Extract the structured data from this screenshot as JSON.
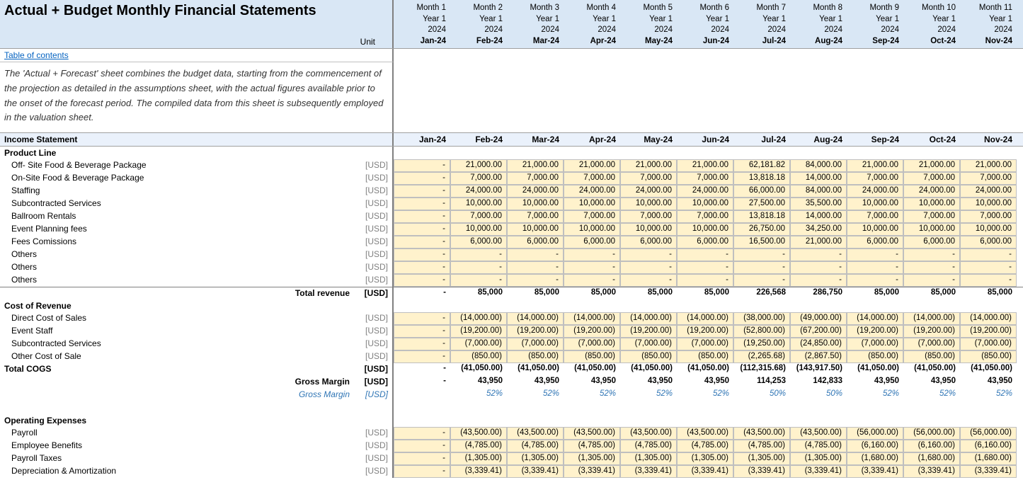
{
  "header": {
    "title": "Actual + Budget Monthly Financial Statements",
    "unit_label": "Unit",
    "months": [
      {
        "m": "Month 1",
        "y": "Year 1",
        "yr": "2024",
        "lab": "Jan-24"
      },
      {
        "m": "Month 2",
        "y": "Year 1",
        "yr": "2024",
        "lab": "Feb-24"
      },
      {
        "m": "Month 3",
        "y": "Year 1",
        "yr": "2024",
        "lab": "Mar-24"
      },
      {
        "m": "Month 4",
        "y": "Year 1",
        "yr": "2024",
        "lab": "Apr-24"
      },
      {
        "m": "Month 5",
        "y": "Year 1",
        "yr": "2024",
        "lab": "May-24"
      },
      {
        "m": "Month 6",
        "y": "Year 1",
        "yr": "2024",
        "lab": "Jun-24"
      },
      {
        "m": "Month 7",
        "y": "Year 1",
        "yr": "2024",
        "lab": "Jul-24"
      },
      {
        "m": "Month 8",
        "y": "Year 1",
        "yr": "2024",
        "lab": "Aug-24"
      },
      {
        "m": "Month 9",
        "y": "Year 1",
        "yr": "2024",
        "lab": "Sep-24"
      },
      {
        "m": "Month 10",
        "y": "Year 1",
        "yr": "2024",
        "lab": "Oct-24"
      },
      {
        "m": "Month 11",
        "y": "Year 1",
        "yr": "2024",
        "lab": "Nov-24"
      }
    ]
  },
  "toc": {
    "label": "Table of contents"
  },
  "description": "The 'Actual + Forecast' sheet combines the budget data, starting from the commencement of the projection as detailed in the assumptions sheet, with the actual figures available prior to the onset of the forecast period. The compiled data from this sheet is subsequently employed in the valuation sheet.",
  "section": {
    "income_statement": "Income Statement",
    "months": [
      "Jan-24",
      "Feb-24",
      "Mar-24",
      "Apr-24",
      "May-24",
      "Jun-24",
      "Jul-24",
      "Aug-24",
      "Sep-24",
      "Oct-24",
      "Nov-24"
    ]
  },
  "groups": {
    "product_line": "Product Line",
    "cost_of_revenue": "Cost  of Revenue",
    "operating_expenses": "Operating Expenses"
  },
  "unit": "[USD]",
  "product_rows": [
    {
      "label": "Off- Site Food & Beverage Package",
      "vals": [
        "-",
        "21,000.00",
        "21,000.00",
        "21,000.00",
        "21,000.00",
        "21,000.00",
        "62,181.82",
        "84,000.00",
        "21,000.00",
        "21,000.00",
        "21,000.00"
      ]
    },
    {
      "label": "On-Site Food & Beverage Package",
      "vals": [
        "-",
        "7,000.00",
        "7,000.00",
        "7,000.00",
        "7,000.00",
        "7,000.00",
        "13,818.18",
        "14,000.00",
        "7,000.00",
        "7,000.00",
        "7,000.00"
      ]
    },
    {
      "label": "Staffing",
      "vals": [
        "-",
        "24,000.00",
        "24,000.00",
        "24,000.00",
        "24,000.00",
        "24,000.00",
        "66,000.00",
        "84,000.00",
        "24,000.00",
        "24,000.00",
        "24,000.00"
      ]
    },
    {
      "label": "Subcontracted Services",
      "vals": [
        "-",
        "10,000.00",
        "10,000.00",
        "10,000.00",
        "10,000.00",
        "10,000.00",
        "27,500.00",
        "35,500.00",
        "10,000.00",
        "10,000.00",
        "10,000.00"
      ]
    },
    {
      "label": "Ballroom Rentals",
      "vals": [
        "-",
        "7,000.00",
        "7,000.00",
        "7,000.00",
        "7,000.00",
        "7,000.00",
        "13,818.18",
        "14,000.00",
        "7,000.00",
        "7,000.00",
        "7,000.00"
      ]
    },
    {
      "label": "Event Planning fees",
      "vals": [
        "-",
        "10,000.00",
        "10,000.00",
        "10,000.00",
        "10,000.00",
        "10,000.00",
        "26,750.00",
        "34,250.00",
        "10,000.00",
        "10,000.00",
        "10,000.00"
      ]
    },
    {
      "label": "Fees Comissions",
      "vals": [
        "-",
        "6,000.00",
        "6,000.00",
        "6,000.00",
        "6,000.00",
        "6,000.00",
        "16,500.00",
        "21,000.00",
        "6,000.00",
        "6,000.00",
        "6,000.00"
      ]
    },
    {
      "label": "Others",
      "vals": [
        "-",
        "-",
        "-",
        "-",
        "-",
        "-",
        "-",
        "-",
        "-",
        "-",
        "-"
      ]
    },
    {
      "label": "Others",
      "vals": [
        "-",
        "-",
        "-",
        "-",
        "-",
        "-",
        "-",
        "-",
        "-",
        "-",
        "-"
      ]
    },
    {
      "label": "Others",
      "vals": [
        "-",
        "-",
        "-",
        "-",
        "-",
        "-",
        "-",
        "-",
        "-",
        "-",
        "-"
      ]
    }
  ],
  "total_revenue": {
    "label": "Total revenue",
    "vals": [
      "-",
      "85,000",
      "85,000",
      "85,000",
      "85,000",
      "85,000",
      "226,568",
      "286,750",
      "85,000",
      "85,000",
      "85,000"
    ]
  },
  "cost_rows": [
    {
      "label": "Direct Cost of Sales",
      "vals": [
        "-",
        "(14,000.00)",
        "(14,000.00)",
        "(14,000.00)",
        "(14,000.00)",
        "(14,000.00)",
        "(38,000.00)",
        "(49,000.00)",
        "(14,000.00)",
        "(14,000.00)",
        "(14,000.00)"
      ]
    },
    {
      "label": "Event Staff",
      "vals": [
        "-",
        "(19,200.00)",
        "(19,200.00)",
        "(19,200.00)",
        "(19,200.00)",
        "(19,200.00)",
        "(52,800.00)",
        "(67,200.00)",
        "(19,200.00)",
        "(19,200.00)",
        "(19,200.00)"
      ]
    },
    {
      "label": "Subcontracted Services",
      "vals": [
        "-",
        "(7,000.00)",
        "(7,000.00)",
        "(7,000.00)",
        "(7,000.00)",
        "(7,000.00)",
        "(19,250.00)",
        "(24,850.00)",
        "(7,000.00)",
        "(7,000.00)",
        "(7,000.00)"
      ]
    },
    {
      "label": "Other Cost of Sale",
      "vals": [
        "-",
        "(850.00)",
        "(850.00)",
        "(850.00)",
        "(850.00)",
        "(850.00)",
        "(2,265.68)",
        "(2,867.50)",
        "(850.00)",
        "(850.00)",
        "(850.00)"
      ]
    }
  ],
  "total_cogs": {
    "label": "Total COGS",
    "vals": [
      "-",
      "(41,050.00)",
      "(41,050.00)",
      "(41,050.00)",
      "(41,050.00)",
      "(41,050.00)",
      "(112,315.68)",
      "(143,917.50)",
      "(41,050.00)",
      "(41,050.00)",
      "(41,050.00)"
    ]
  },
  "gross_margin": {
    "label": "Gross Margin",
    "vals": [
      "-",
      "43,950",
      "43,950",
      "43,950",
      "43,950",
      "43,950",
      "114,253",
      "142,833",
      "43,950",
      "43,950",
      "43,950"
    ]
  },
  "gross_margin_pct": {
    "label": "Gross Margin",
    "vals": [
      "",
      "52%",
      "52%",
      "52%",
      "52%",
      "52%",
      "50%",
      "50%",
      "52%",
      "52%",
      "52%"
    ]
  },
  "opex_rows": [
    {
      "label": "Payroll",
      "vals": [
        "-",
        "(43,500.00)",
        "(43,500.00)",
        "(43,500.00)",
        "(43,500.00)",
        "(43,500.00)",
        "(43,500.00)",
        "(43,500.00)",
        "(56,000.00)",
        "(56,000.00)",
        "(56,000.00)"
      ]
    },
    {
      "label": "Employee Benefits",
      "vals": [
        "-",
        "(4,785.00)",
        "(4,785.00)",
        "(4,785.00)",
        "(4,785.00)",
        "(4,785.00)",
        "(4,785.00)",
        "(4,785.00)",
        "(6,160.00)",
        "(6,160.00)",
        "(6,160.00)"
      ]
    },
    {
      "label": "Payroll Taxes",
      "vals": [
        "-",
        "(1,305.00)",
        "(1,305.00)",
        "(1,305.00)",
        "(1,305.00)",
        "(1,305.00)",
        "(1,305.00)",
        "(1,305.00)",
        "(1,680.00)",
        "(1,680.00)",
        "(1,680.00)"
      ]
    },
    {
      "label": "Depreciation & Amortization",
      "vals": [
        "-",
        "(3,339.41)",
        "(3,339.41)",
        "(3,339.41)",
        "(3,339.41)",
        "(3,339.41)",
        "(3,339.41)",
        "(3,339.41)",
        "(3,339.41)",
        "(3,339.41)",
        "(3,339.41)"
      ]
    }
  ],
  "colors": {
    "header_bg": "#d9e7f5",
    "shaded_bg": "#fff2cc",
    "cell_border": "#bfbfbf",
    "link": "#0563c1",
    "blue_text": "#2f75b5"
  }
}
